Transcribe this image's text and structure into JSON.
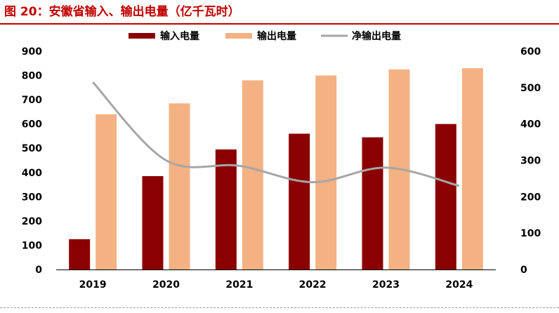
{
  "figure": {
    "title": "图 20：安徽省输入、输出电量（亿千瓦时）"
  },
  "colors": {
    "title": "#c00000",
    "input_bar": "#8b0000",
    "output_bar": "#f4b183",
    "net_line": "#a6a6a6"
  },
  "chart_data": {
    "type": "bar",
    "title": "安徽省输入、输出电量（亿千瓦时）",
    "categories": [
      "2019",
      "2020",
      "2021",
      "2022",
      "2023",
      "2024"
    ],
    "series": [
      {
        "name": "输入电量",
        "type": "bar",
        "axis": "left",
        "values": [
          125,
          385,
          495,
          560,
          545,
          600
        ]
      },
      {
        "name": "输出电量",
        "type": "bar",
        "axis": "left",
        "values": [
          640,
          685,
          780,
          800,
          825,
          830
        ]
      },
      {
        "name": "净输出电量",
        "type": "line",
        "axis": "right",
        "smooth": true,
        "values": [
          515,
          300,
          285,
          240,
          280,
          230
        ]
      }
    ],
    "y_left": {
      "ylim": [
        0,
        900
      ],
      "ticks": [
        "0",
        "100",
        "200",
        "300",
        "400",
        "500",
        "600",
        "700",
        "800",
        "900"
      ]
    },
    "y_right": {
      "ylim": [
        0,
        600
      ],
      "ticks": [
        "0",
        "100",
        "200",
        "300",
        "400",
        "500",
        "600"
      ]
    },
    "legend_position": "top-center",
    "grid": false
  }
}
